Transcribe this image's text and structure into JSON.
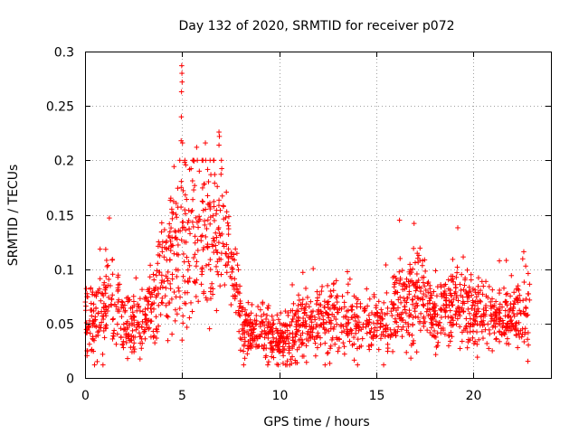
{
  "chart_data": {
    "type": "scatter",
    "title": "Day 132 of 2020, SRMTID for receiver p072",
    "xlabel": "GPS time / hours",
    "ylabel": "SRMTID / TECUs",
    "xlim": [
      0,
      24
    ],
    "ylim": [
      0,
      0.3
    ],
    "xticks": [
      0,
      5,
      10,
      15,
      20
    ],
    "xtick_labels": [
      "0",
      "5",
      "10",
      "15",
      "20"
    ],
    "yticks": [
      0,
      0.05,
      0.1,
      0.15,
      0.2,
      0.25,
      0.3
    ],
    "ytick_labels": [
      "0",
      "0.05",
      "0.1",
      "0.15",
      "0.2",
      "0.25",
      "0.3"
    ],
    "grid": true,
    "marker": "+",
    "color": "#ff0000",
    "trend": {
      "hours": [
        0.0,
        0.5,
        1.0,
        1.5,
        2.0,
        2.5,
        3.0,
        3.5,
        4.0,
        4.5,
        5.0,
        5.5,
        6.0,
        6.5,
        7.0,
        7.5,
        8.0,
        8.5,
        9.0,
        9.5,
        10.0,
        10.5,
        11.0,
        11.5,
        12.0,
        12.5,
        13.0,
        13.5,
        14.0,
        14.5,
        15.0,
        15.5,
        16.0,
        16.5,
        17.0,
        17.5,
        18.0,
        18.5,
        19.0,
        19.5,
        20.0,
        20.5,
        21.0,
        21.5,
        22.0,
        22.5,
        22.9
      ],
      "values": [
        0.055,
        0.05,
        0.065,
        0.075,
        0.05,
        0.045,
        0.05,
        0.07,
        0.1,
        0.11,
        0.12,
        0.13,
        0.145,
        0.12,
        0.14,
        0.11,
        0.05,
        0.045,
        0.04,
        0.04,
        0.03,
        0.04,
        0.045,
        0.05,
        0.055,
        0.05,
        0.055,
        0.05,
        0.05,
        0.05,
        0.055,
        0.05,
        0.06,
        0.07,
        0.08,
        0.07,
        0.06,
        0.06,
        0.065,
        0.065,
        0.06,
        0.055,
        0.055,
        0.05,
        0.055,
        0.06,
        0.06
      ],
      "spread": [
        0.02,
        0.025,
        0.03,
        0.03,
        0.02,
        0.02,
        0.02,
        0.03,
        0.03,
        0.04,
        0.06,
        0.05,
        0.05,
        0.05,
        0.045,
        0.03,
        0.02,
        0.015,
        0.015,
        0.015,
        0.015,
        0.02,
        0.02,
        0.02,
        0.02,
        0.02,
        0.02,
        0.02,
        0.02,
        0.02,
        0.02,
        0.02,
        0.025,
        0.03,
        0.035,
        0.025,
        0.02,
        0.02,
        0.025,
        0.025,
        0.02,
        0.02,
        0.02,
        0.02,
        0.02,
        0.025,
        0.025
      ]
    },
    "extreme_points": [
      {
        "x": 4.98,
        "y": 0.287
      },
      {
        "x": 4.99,
        "y": 0.28
      },
      {
        "x": 5.0,
        "y": 0.272
      },
      {
        "x": 4.97,
        "y": 0.263
      },
      {
        "x": 4.96,
        "y": 0.24
      },
      {
        "x": 4.95,
        "y": 0.218
      },
      {
        "x": 5.02,
        "y": 0.216
      },
      {
        "x": 6.9,
        "y": 0.226
      },
      {
        "x": 6.92,
        "y": 0.222
      },
      {
        "x": 6.9,
        "y": 0.214
      },
      {
        "x": 6.2,
        "y": 0.216
      },
      {
        "x": 5.75,
        "y": 0.212
      },
      {
        "x": 1.25,
        "y": 0.147
      },
      {
        "x": 16.2,
        "y": 0.145
      },
      {
        "x": 16.95,
        "y": 0.142
      },
      {
        "x": 19.2,
        "y": 0.138
      },
      {
        "x": 22.6,
        "y": 0.116
      },
      {
        "x": 21.7,
        "y": 0.108
      }
    ]
  }
}
